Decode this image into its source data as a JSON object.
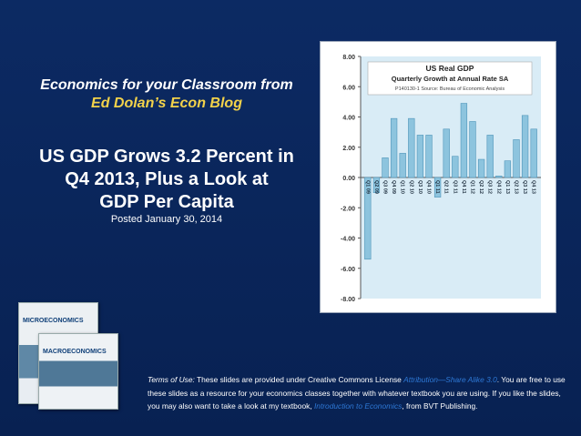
{
  "header": {
    "line1": "Economics for your Classroom from",
    "line2": "Ed Dolan’s Econ Blog"
  },
  "title": {
    "line1": "US GDP Grows 3.2 Percent in",
    "line2": "Q4 2013, Plus a Look at",
    "line3": "GDP Per Capita"
  },
  "posted": "Posted January 30, 2014",
  "chart_data": {
    "type": "bar",
    "title": "US Real GDP",
    "subtitle": "Quarterly Growth at Annual Rate SA",
    "note": "P140130-1 Source: Bureau of Economic Analysis",
    "ylim": [
      -8,
      8
    ],
    "yticks": [
      "8.00",
      "6.00",
      "4.00",
      "2.00",
      "0.00",
      "-2.00",
      "-4.00",
      "-6.00",
      "-8.00"
    ],
    "categories": [
      "Q1 09",
      "Q2 09",
      "Q3 09",
      "Q4 09",
      "Q1 10",
      "Q2 10",
      "Q3 10",
      "Q4 10",
      "Q1 11",
      "Q2 11",
      "Q3 11",
      "Q4 11",
      "Q1 12",
      "Q2 12",
      "Q3 12",
      "Q4 12",
      "Q1 13",
      "Q2 13",
      "Q3 13",
      "Q4 13"
    ],
    "values": [
      -5.4,
      -1.0,
      1.3,
      3.9,
      1.6,
      3.9,
      2.8,
      2.8,
      -1.3,
      3.2,
      1.4,
      4.9,
      3.7,
      1.2,
      2.8,
      0.1,
      1.1,
      2.5,
      4.1,
      3.2
    ],
    "colors": {
      "bar": "#8dc4de",
      "bar_stroke": "#4f95b9",
      "plot_bg": "#d9ecf6",
      "axis": "#555555"
    }
  },
  "books": {
    "book1_title": "MICROECONOMICS",
    "book2_title": "MACROECONOMICS"
  },
  "terms": {
    "label": "Terms of Use:",
    "part1": " These slides are provided under Creative Commons License ",
    "license": "Attribution—Share Alike 3.0",
    "part2": ". You are free to use these slides as a resource for your economics classes together with whatever textbook you are using. If you like the slides, you may also want to take a look at my textbook, ",
    "book": "Introduction to Economics",
    "part3": ", from BVT Publishing."
  }
}
